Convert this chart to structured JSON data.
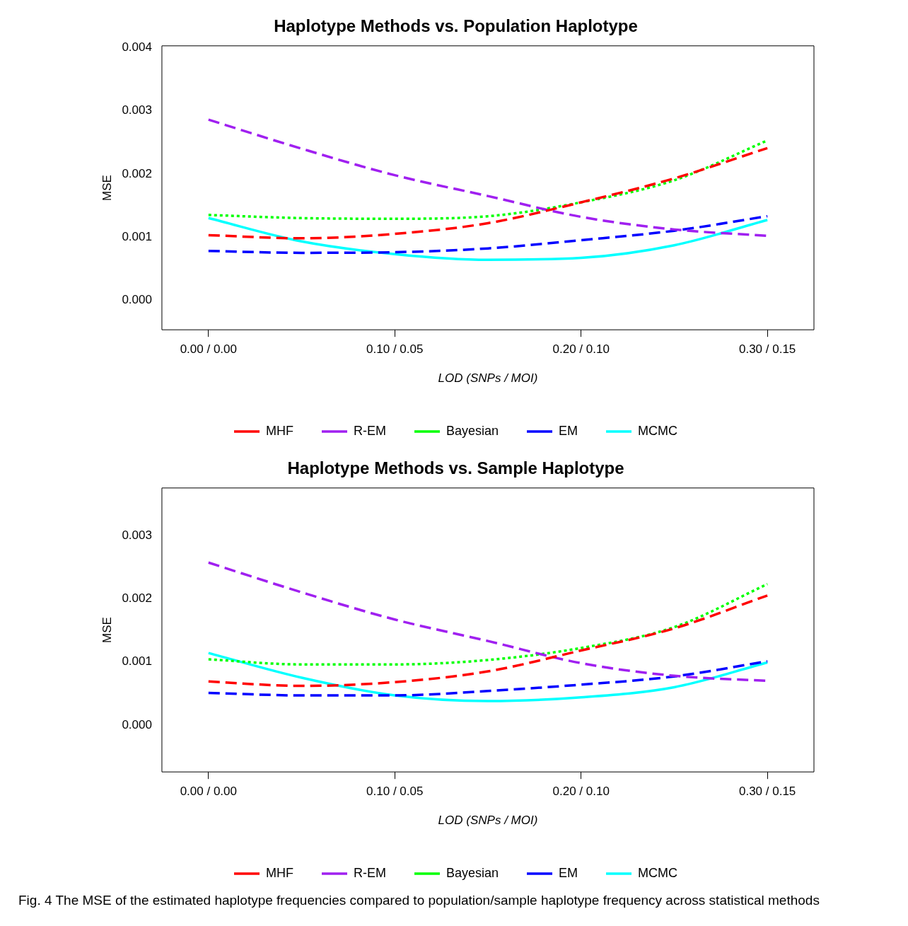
{
  "chart_data": [
    {
      "type": "line",
      "title": "Haplotype Methods vs. Population Haplotype",
      "xlabel": "LOD (SNPs / MOI)",
      "ylabel": "MSE",
      "categories": [
        "0.00 / 0.00",
        null,
        "0.10 / 0.05",
        null,
        "0.20 / 0.10",
        null,
        "0.30 / 0.15"
      ],
      "series": [
        {
          "name": "MHF",
          "color": "#ff0000",
          "line_style": "dashed",
          "values": [
            0.00103,
            0.00098,
            0.00105,
            0.00122,
            0.00155,
            0.00193,
            0.00241
          ]
        },
        {
          "name": "R-EM",
          "color": "#a020f0",
          "line_style": "dashed",
          "values": [
            0.00286,
            0.0024,
            0.00198,
            0.00165,
            0.00132,
            0.00112,
            0.00102
          ]
        },
        {
          "name": "Bayesian",
          "color": "#00ff00",
          "line_style": "dotted",
          "values": [
            0.00135,
            0.0013,
            0.00129,
            0.00133,
            0.00155,
            0.0019,
            0.00253
          ]
        },
        {
          "name": "EM",
          "color": "#0000ff",
          "line_style": "dashed",
          "values": [
            0.00078,
            0.00075,
            0.00076,
            0.00082,
            0.00095,
            0.0011,
            0.00133
          ]
        },
        {
          "name": "MCMC",
          "color": "#00ffff",
          "line_style": "solid",
          "values": [
            0.0013,
            0.00093,
            0.00073,
            0.00064,
            0.00067,
            0.00087,
            0.00127
          ]
        }
      ],
      "ylim": [
        -0.00047,
        0.00403
      ],
      "yticks": [
        {
          "value": 0,
          "label": "0.000"
        },
        {
          "value": 0.001,
          "label": "0.001"
        },
        {
          "value": 0.002,
          "label": "0.002"
        },
        {
          "value": 0.003,
          "label": "0.003"
        },
        {
          "value": 0.004,
          "label": "0.004"
        }
      ],
      "grid": false,
      "legend": "bottom"
    },
    {
      "type": "line",
      "title": "Haplotype Methods vs. Sample Haplotype",
      "xlabel": "LOD (SNPs / MOI)",
      "ylabel": "MSE",
      "categories": [
        "0.00 / 0.00",
        null,
        "0.10 / 0.05",
        null,
        "0.20 / 0.10",
        null,
        "0.30 / 0.15"
      ],
      "series": [
        {
          "name": "MHF",
          "color": "#ff0000",
          "line_style": "dashed",
          "values": [
            0.00069,
            0.00062,
            0.00068,
            0.00085,
            0.00118,
            0.00153,
            0.00205
          ]
        },
        {
          "name": "R-EM",
          "color": "#a020f0",
          "line_style": "dashed",
          "values": [
            0.00257,
            0.0021,
            0.00167,
            0.00133,
            0.00098,
            0.00078,
            0.0007
          ]
        },
        {
          "name": "Bayesian",
          "color": "#00ff00",
          "line_style": "dotted",
          "values": [
            0.00104,
            0.00096,
            0.00096,
            0.00103,
            0.00122,
            0.00155,
            0.00223
          ]
        },
        {
          "name": "EM",
          "color": "#0000ff",
          "line_style": "dashed",
          "values": [
            0.00051,
            0.00047,
            0.00047,
            0.00054,
            0.00064,
            0.00077,
            0.00101
          ]
        },
        {
          "name": "MCMC",
          "color": "#00ffff",
          "line_style": "solid",
          "values": [
            0.00114,
            0.00075,
            0.00047,
            0.00038,
            0.00044,
            0.0006,
            0.00099
          ]
        }
      ],
      "ylim": [
        -0.00074,
        0.00375
      ],
      "yticks": [
        {
          "value": 0,
          "label": "0.000"
        },
        {
          "value": 0.001,
          "label": "0.001"
        },
        {
          "value": 0.002,
          "label": "0.002"
        },
        {
          "value": 0.003,
          "label": "0.003"
        }
      ],
      "grid": false,
      "legend": "bottom",
      "annotations": [
        "Fig. 4 The MSE of the estimated haplotype frequencies compared to population/sample haplotype frequency across statistical methods"
      ]
    }
  ]
}
